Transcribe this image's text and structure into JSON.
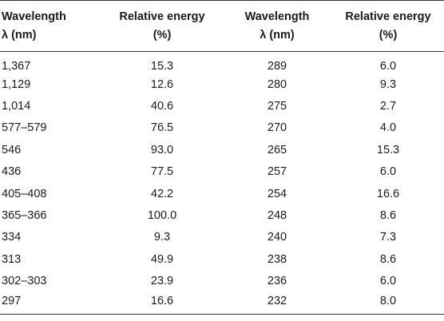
{
  "table": {
    "headers": [
      {
        "line1": "Wavelength",
        "line2": "λ (nm)"
      },
      {
        "line1": "Relative energy",
        "line2": "(%)"
      },
      {
        "line1": "Wavelength",
        "line2": "λ (nm)"
      },
      {
        "line1": "Relative energy",
        "line2": "(%)"
      }
    ],
    "rows": [
      [
        "1,367",
        "15.3",
        "289",
        "6.0"
      ],
      [
        "1,129",
        "12.6",
        "280",
        "9.3"
      ],
      [
        "1,014",
        "40.6",
        "275",
        "2.7"
      ],
      [
        "577–579",
        "76.5",
        "270",
        "4.0"
      ],
      [
        "546",
        "93.0",
        "265",
        "15.3"
      ],
      [
        "436",
        "77.5",
        "257",
        "6.0"
      ],
      [
        "405–408",
        "42.2",
        "254",
        "16.6"
      ],
      [
        "365–366",
        "100.0",
        "248",
        "8.6"
      ],
      [
        "334",
        "9.3",
        "240",
        "7.3"
      ],
      [
        "313",
        "49.9",
        "238",
        "8.6"
      ],
      [
        "302–303",
        "23.9",
        "236",
        "6.0"
      ],
      [
        "297",
        "16.6",
        "232",
        "8.0"
      ]
    ]
  }
}
